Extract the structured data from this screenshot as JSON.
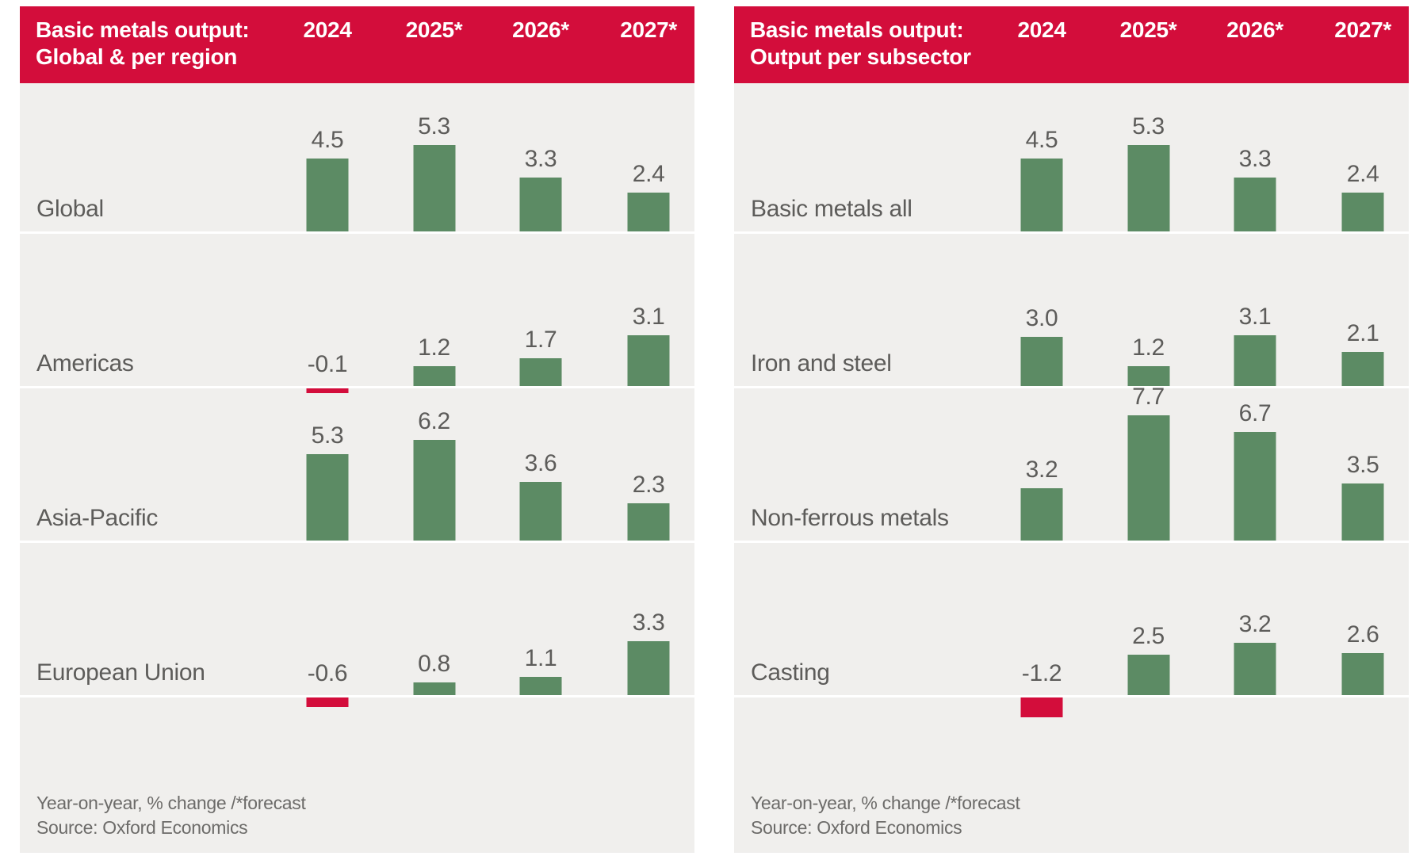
{
  "colors": {
    "header_red": "#d30d3b",
    "bar_green": "#5c8b64",
    "bar_negative_red": "#d30d3b",
    "panel_background": "#f0efed",
    "label_gray": "#5d5c5a",
    "footer_gray": "#6c6b69"
  },
  "chart_data": [
    {
      "type": "bar",
      "title": "Basic metals output:",
      "subtitle": "Global & per region",
      "categories": [
        "2024",
        "2025*",
        "2026*",
        "2027*"
      ],
      "series": [
        {
          "name": "Global",
          "values": [
            4.5,
            5.3,
            3.3,
            2.4
          ]
        },
        {
          "name": "Americas",
          "values": [
            -0.1,
            1.2,
            1.7,
            3.1
          ]
        },
        {
          "name": "Asia-Pacific",
          "values": [
            5.3,
            6.2,
            3.6,
            2.3
          ]
        },
        {
          "name": "European Union",
          "values": [
            -0.6,
            0.8,
            1.1,
            3.3
          ]
        }
      ],
      "footnote": "Year-on-year, % change /*forecast",
      "source": "Source: Oxford Economics",
      "legend_position": "none",
      "grid": false
    },
    {
      "type": "bar",
      "title": "Basic metals output:",
      "subtitle": "Output per subsector",
      "categories": [
        "2024",
        "2025*",
        "2026*",
        "2027*"
      ],
      "series": [
        {
          "name": "Basic metals all",
          "values": [
            4.5,
            5.3,
            3.3,
            2.4
          ]
        },
        {
          "name": "Iron and steel",
          "values": [
            3.0,
            1.2,
            3.1,
            2.1
          ]
        },
        {
          "name": "Non-ferrous metals",
          "values": [
            3.2,
            7.7,
            6.7,
            3.5
          ]
        },
        {
          "name": "Casting",
          "values": [
            -1.2,
            2.5,
            3.2,
            2.6
          ]
        }
      ],
      "footnote": "Year-on-year, % change /*forecast",
      "source": "Source: Oxford Economics",
      "legend_position": "none",
      "grid": false
    }
  ]
}
